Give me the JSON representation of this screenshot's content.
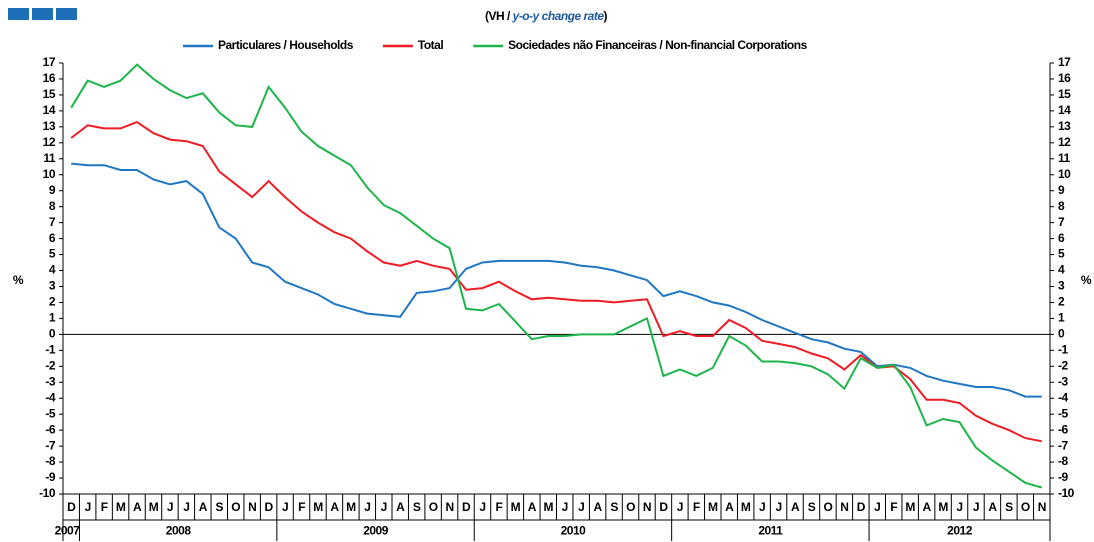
{
  "chart_data": {
    "type": "line",
    "title": {
      "prefix": "(VH / ",
      "emphasis": "y-o-y change rate",
      "suffix": ")"
    },
    "ylabel": "%",
    "y2label": "%",
    "categories": [
      "D",
      "J",
      "F",
      "M",
      "A",
      "M",
      "J",
      "J",
      "A",
      "S",
      "O",
      "N",
      "D",
      "J",
      "F",
      "M",
      "A",
      "M",
      "J",
      "J",
      "A",
      "S",
      "O",
      "N",
      "D",
      "J",
      "F",
      "M",
      "A",
      "M",
      "J",
      "J",
      "A",
      "S",
      "O",
      "N",
      "D",
      "J",
      "F",
      "M",
      "A",
      "M",
      "J",
      "J",
      "A",
      "S",
      "O",
      "N",
      "D",
      "J",
      "F",
      "M",
      "A",
      "M",
      "J",
      "J",
      "A",
      "S",
      "O",
      "N"
    ],
    "years": [
      "2007",
      "2008",
      "2009",
      "2010",
      "2011",
      "2012"
    ],
    "ylim": [
      -10,
      17
    ],
    "yticks": [
      17,
      16,
      15,
      14,
      13,
      12,
      11,
      10,
      9,
      8,
      7,
      6,
      5,
      4,
      3,
      2,
      1,
      0,
      -1,
      -2,
      -3,
      -4,
      -5,
      -6,
      -7,
      -8,
      -9,
      -10
    ],
    "y2lim": [
      -10,
      17
    ],
    "y2ticks": [
      17,
      16,
      15,
      14,
      13,
      12,
      11,
      10,
      9,
      8,
      7,
      6,
      5,
      4,
      3,
      2,
      1,
      0,
      -1,
      -2,
      -3,
      -4,
      -5,
      -6,
      -7,
      -8,
      -9,
      -10
    ],
    "series": [
      {
        "name": "Particulares / Households",
        "color": "#1f77c4",
        "values": [
          10.7,
          10.6,
          10.6,
          10.3,
          10.3,
          9.7,
          9.4,
          9.6,
          8.8,
          6.7,
          6.0,
          4.5,
          4.2,
          3.3,
          2.9,
          2.5,
          1.9,
          1.6,
          1.3,
          1.2,
          1.1,
          2.6,
          2.7,
          2.9,
          4.1,
          4.5,
          4.6,
          4.6,
          4.6,
          4.6,
          4.5,
          4.3,
          4.2,
          4.0,
          3.7,
          3.4,
          2.4,
          2.7,
          2.4,
          2.0,
          1.8,
          1.4,
          0.9,
          0.5,
          0.1,
          -0.3,
          -0.5,
          -0.9,
          -1.1,
          -2.0,
          -1.9,
          -2.1,
          -2.6,
          -2.9,
          -3.1,
          -3.3,
          -3.3,
          -3.5,
          -3.9,
          -3.9
        ]
      },
      {
        "name": "Total",
        "color": "#ee1c24",
        "values": [
          12.3,
          13.1,
          12.9,
          12.9,
          13.3,
          12.6,
          12.2,
          12.1,
          11.8,
          10.2,
          9.4,
          8.6,
          9.6,
          8.6,
          7.7,
          7.0,
          6.4,
          6.0,
          5.2,
          4.5,
          4.3,
          4.6,
          4.3,
          4.1,
          2.8,
          2.9,
          3.3,
          2.7,
          2.2,
          2.3,
          2.2,
          2.1,
          2.1,
          2.0,
          2.1,
          2.2,
          -0.1,
          0.2,
          -0.1,
          -0.1,
          0.9,
          0.4,
          -0.4,
          -0.6,
          -0.8,
          -1.2,
          -1.5,
          -2.2,
          -1.3,
          -2.1,
          -2.0,
          -2.8,
          -4.1,
          -4.1,
          -4.3,
          -5.1,
          -5.6,
          -6.0,
          -6.5,
          -6.7
        ]
      },
      {
        "name": "Sociedades não Financeiras / Non-financial Corporations",
        "color": "#1db54a",
        "values": [
          14.2,
          15.9,
          15.5,
          15.9,
          16.9,
          16.0,
          15.3,
          14.8,
          15.1,
          13.9,
          13.1,
          13.0,
          15.5,
          14.2,
          12.7,
          11.8,
          11.2,
          10.6,
          9.2,
          8.1,
          7.6,
          6.8,
          6.0,
          5.4,
          1.6,
          1.5,
          1.9,
          0.8,
          -0.3,
          -0.1,
          -0.1,
          0.0,
          0.0,
          0.0,
          0.5,
          1.0,
          -2.6,
          -2.2,
          -2.6,
          -2.1,
          -0.1,
          -0.7,
          -1.7,
          -1.7,
          -1.8,
          -2.0,
          -2.5,
          -3.4,
          -1.5,
          -2.1,
          -1.9,
          -3.3,
          -5.7,
          -5.3,
          -5.5,
          -7.1,
          -7.9,
          -8.6,
          -9.3,
          -9.6
        ]
      }
    ]
  }
}
